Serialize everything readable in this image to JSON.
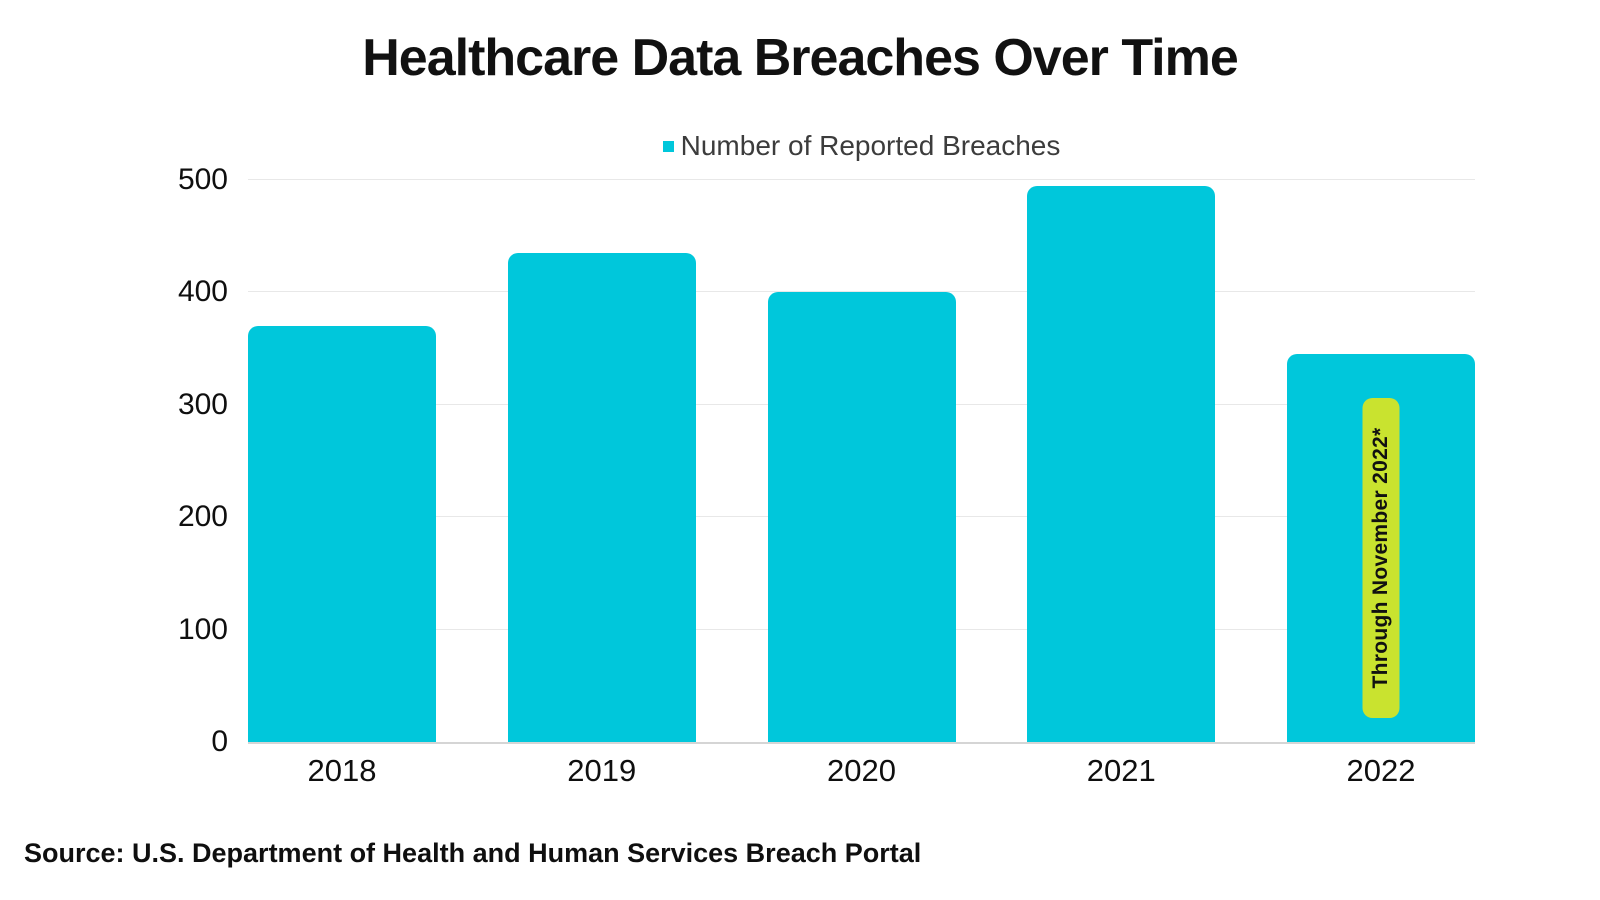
{
  "title": "Healthcare Data Breaches Over Time",
  "legend": {
    "label": "Number of Reported Breaches"
  },
  "source": "Source: U.S. Department of Health and Human Services Breach Portal",
  "colors": {
    "bar": "#00C7DB",
    "annotation_bg": "#C9E32F",
    "annotation_text": "#111111",
    "gridline": "#E8E8E8",
    "axis_line": "#D5D5D5",
    "tick_text": "#0F0F0F",
    "legend_text": "#3C3C3C"
  },
  "chart_data": {
    "type": "bar",
    "title": "Healthcare Data Breaches Over Time",
    "categories": [
      "2018",
      "2019",
      "2020",
      "2021",
      "2022"
    ],
    "series": [
      {
        "name": "Number of Reported Breaches",
        "values": [
          370,
          435,
          400,
          495,
          345
        ]
      }
    ],
    "xlabel": "",
    "ylabel": "",
    "ylim": [
      0,
      500
    ],
    "yticks": [
      0,
      100,
      200,
      300,
      400,
      500
    ],
    "grid": true,
    "legend_position": "top-center",
    "annotation": {
      "text": "Through November 2022*",
      "category": "2022",
      "rotation_deg": -90
    }
  }
}
